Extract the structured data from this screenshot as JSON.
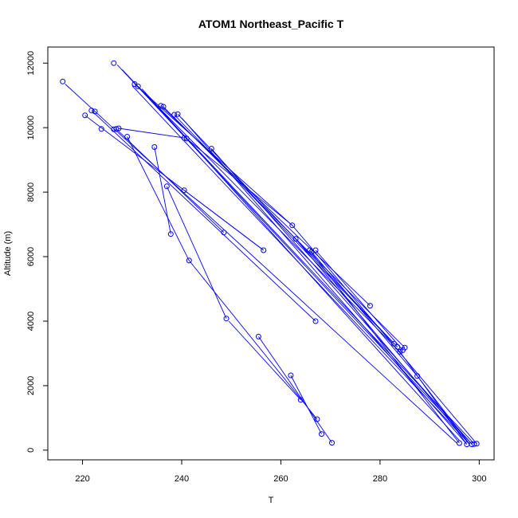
{
  "chart_data": {
    "type": "line",
    "title": "ATOM1 Northeast_Pacific T",
    "xlabel": "T",
    "ylabel": "Altitude (m)",
    "xlim": [
      213,
      303
    ],
    "ylim": [
      -300,
      12500
    ],
    "x_ticks": [
      220,
      240,
      260,
      280,
      300
    ],
    "y_ticks": [
      0,
      2000,
      4000,
      6000,
      8000,
      10000,
      12000
    ],
    "grid": false,
    "legend": "none",
    "marker": "open-circle",
    "color": "#0000ff",
    "points": [
      {
        "x": 226.3,
        "y": 12000
      },
      {
        "x": 230.5,
        "y": 11350
      },
      {
        "x": 231.2,
        "y": 11280
      },
      {
        "x": 235.8,
        "y": 10680
      },
      {
        "x": 236.3,
        "y": 10650
      },
      {
        "x": 238.5,
        "y": 10400
      },
      {
        "x": 239.2,
        "y": 10420
      },
      {
        "x": 240.5,
        "y": 9680
      },
      {
        "x": 241.0,
        "y": 9660
      },
      {
        "x": 246.0,
        "y": 9350
      },
      {
        "x": 262.3,
        "y": 6970
      },
      {
        "x": 263.0,
        "y": 6550
      },
      {
        "x": 265.8,
        "y": 6200
      },
      {
        "x": 266.2,
        "y": 6150
      },
      {
        "x": 267.0,
        "y": 6200
      },
      {
        "x": 278.0,
        "y": 4480
      },
      {
        "x": 282.8,
        "y": 3300
      },
      {
        "x": 283.5,
        "y": 3200
      },
      {
        "x": 284.0,
        "y": 3050
      },
      {
        "x": 284.6,
        "y": 3100
      },
      {
        "x": 285.0,
        "y": 3180
      },
      {
        "x": 287.5,
        "y": 2300
      },
      {
        "x": 296.0,
        "y": 220
      },
      {
        "x": 297.5,
        "y": 180
      },
      {
        "x": 298.5,
        "y": 180
      },
      {
        "x": 299.0,
        "y": 190
      },
      {
        "x": 299.5,
        "y": 200
      },
      {
        "x": 216.0,
        "y": 11430
      },
      {
        "x": 220.5,
        "y": 10380
      },
      {
        "x": 221.8,
        "y": 10530
      },
      {
        "x": 222.5,
        "y": 10500
      },
      {
        "x": 223.8,
        "y": 9960
      },
      {
        "x": 226.3,
        "y": 9950
      },
      {
        "x": 226.8,
        "y": 9960
      },
      {
        "x": 227.3,
        "y": 9980
      },
      {
        "x": 229.0,
        "y": 9720
      },
      {
        "x": 234.5,
        "y": 9400
      },
      {
        "x": 237.0,
        "y": 8180
      },
      {
        "x": 240.5,
        "y": 8060
      },
      {
        "x": 237.8,
        "y": 6700
      },
      {
        "x": 241.5,
        "y": 5880
      },
      {
        "x": 248.5,
        "y": 6750
      },
      {
        "x": 256.5,
        "y": 6200
      },
      {
        "x": 267.0,
        "y": 4000
      },
      {
        "x": 249.0,
        "y": 4080
      },
      {
        "x": 255.5,
        "y": 3520
      },
      {
        "x": 262.0,
        "y": 2320
      },
      {
        "x": 264.0,
        "y": 1560
      },
      {
        "x": 267.3,
        "y": 960
      },
      {
        "x": 268.2,
        "y": 500
      },
      {
        "x": 270.3,
        "y": 230
      }
    ],
    "segments": [
      [
        [
          227,
          11950
        ],
        [
          298.5,
          190
        ]
      ],
      [
        [
          228,
          11800
        ],
        [
          299.0,
          200
        ]
      ],
      [
        [
          230.5,
          11350
        ],
        [
          262.3,
          6970
        ]
      ],
      [
        [
          231.2,
          11280
        ],
        [
          284.0,
          3050
        ]
      ],
      [
        [
          230,
          11300
        ],
        [
          298,
          200
        ]
      ],
      [
        [
          232,
          11200
        ],
        [
          296,
          300
        ]
      ],
      [
        [
          235.8,
          10680
        ],
        [
          278.0,
          4480
        ]
      ],
      [
        [
          236.3,
          10650
        ],
        [
          285.0,
          3180
        ]
      ],
      [
        [
          238.5,
          10400
        ],
        [
          282.8,
          3300
        ]
      ],
      [
        [
          239.2,
          10420
        ],
        [
          283.5,
          3200
        ]
      ],
      [
        [
          240,
          10300
        ],
        [
          297.5,
          180
        ]
      ],
      [
        [
          246.0,
          9350
        ],
        [
          298.5,
          190
        ]
      ],
      [
        [
          262.3,
          6970
        ],
        [
          299.5,
          200
        ]
      ],
      [
        [
          263.0,
          6550
        ],
        [
          298.0,
          180
        ]
      ],
      [
        [
          265.8,
          6200
        ],
        [
          296.0,
          220
        ]
      ],
      [
        [
          266.2,
          6150
        ],
        [
          287.5,
          2300
        ]
      ],
      [
        [
          267.0,
          6200
        ],
        [
          284.6,
          3100
        ]
      ],
      [
        [
          284.0,
          3050
        ],
        [
          297.5,
          180
        ]
      ],
      [
        [
          287.5,
          2300
        ],
        [
          298.0,
          200
        ]
      ],
      [
        [
          227.3,
          9980
        ],
        [
          240.5,
          9680
        ]
      ],
      [
        [
          241.0,
          9660
        ],
        [
          262.3,
          6970
        ]
      ],
      [
        [
          216.5,
          11350
        ],
        [
          295.5,
          220
        ]
      ],
      [
        [
          220.5,
          10380
        ],
        [
          256.5,
          6200
        ]
      ],
      [
        [
          221.8,
          10530
        ],
        [
          267.0,
          4000
        ]
      ],
      [
        [
          226.8,
          9960
        ],
        [
          248.5,
          6750
        ]
      ],
      [
        [
          229.0,
          9720
        ],
        [
          241.5,
          5880
        ]
      ],
      [
        [
          234.5,
          9400
        ],
        [
          237.8,
          6700
        ]
      ],
      [
        [
          237.0,
          8180
        ],
        [
          249.0,
          4080
        ]
      ],
      [
        [
          240.5,
          8060
        ],
        [
          256.5,
          6200
        ]
      ],
      [
        [
          241.5,
          5880
        ],
        [
          267.3,
          960
        ]
      ],
      [
        [
          249.5,
          4000
        ],
        [
          264.0,
          1560
        ]
      ],
      [
        [
          255.5,
          3520
        ],
        [
          270.3,
          230
        ]
      ],
      [
        [
          262.0,
          2320
        ],
        [
          268.2,
          500
        ]
      ]
    ]
  }
}
